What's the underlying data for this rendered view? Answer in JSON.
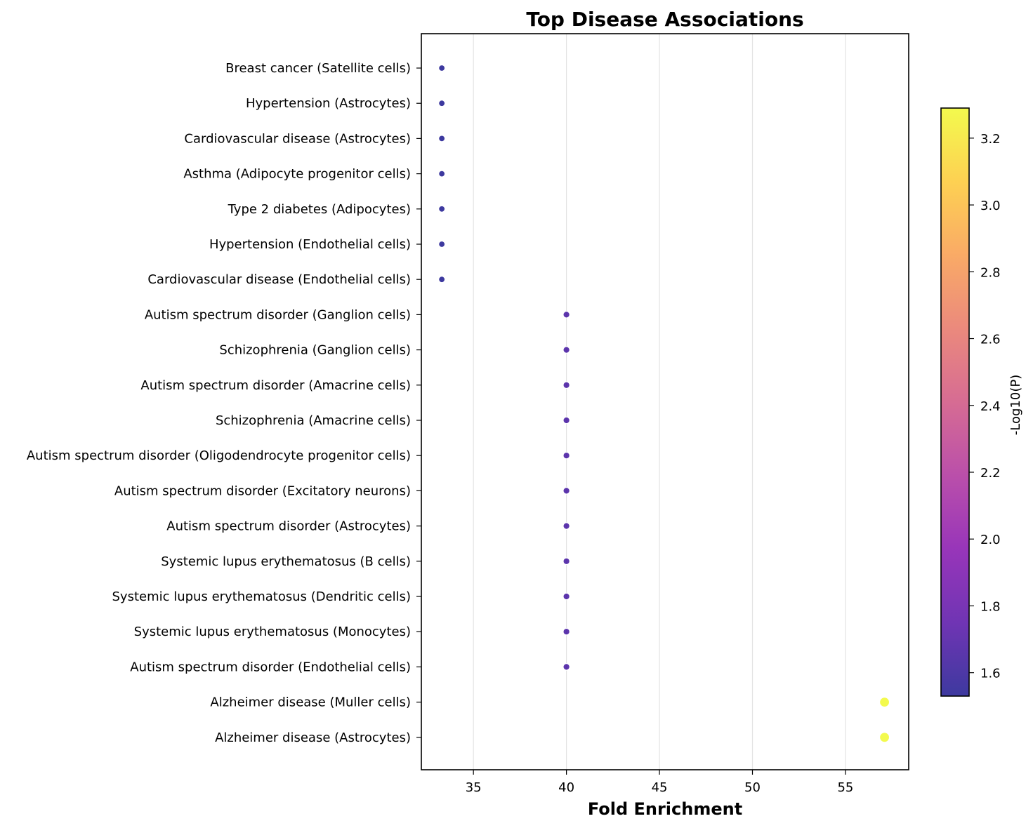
{
  "chart_data": {
    "type": "scatter",
    "title": "Top Disease Associations",
    "xlabel": "Fold Enrichment",
    "ylabel": "",
    "xlim": [
      32.2,
      58.4
    ],
    "xticks": [
      35,
      40,
      45,
      50,
      55
    ],
    "grid": "vertical",
    "colorbar": {
      "label": "-Log10(P)",
      "colormap": "plasma",
      "range": [
        1.53,
        3.29
      ],
      "ticks": [
        "1.6",
        "1.8",
        "2.0",
        "2.2",
        "2.4",
        "2.6",
        "2.8",
        "3.0",
        "3.2"
      ]
    },
    "points": [
      {
        "label": "Breast cancer (Satellite cells)",
        "x": 33.3,
        "neglog10p": 1.53
      },
      {
        "label": "Hypertension (Astrocytes)",
        "x": 33.3,
        "neglog10p": 1.53
      },
      {
        "label": "Cardiovascular disease (Astrocytes)",
        "x": 33.3,
        "neglog10p": 1.53
      },
      {
        "label": "Asthma (Adipocyte progenitor cells)",
        "x": 33.3,
        "neglog10p": 1.53
      },
      {
        "label": "Type 2 diabetes (Adipocytes)",
        "x": 33.3,
        "neglog10p": 1.53
      },
      {
        "label": "Hypertension (Endothelial cells)",
        "x": 33.3,
        "neglog10p": 1.53
      },
      {
        "label": "Cardiovascular disease (Endothelial cells)",
        "x": 33.3,
        "neglog10p": 1.53
      },
      {
        "label": "Autism spectrum disorder (Ganglion cells)",
        "x": 40.0,
        "neglog10p": 1.67
      },
      {
        "label": "Schizophrenia (Ganglion cells)",
        "x": 40.0,
        "neglog10p": 1.67
      },
      {
        "label": "Autism spectrum disorder (Amacrine cells)",
        "x": 40.0,
        "neglog10p": 1.67
      },
      {
        "label": "Schizophrenia (Amacrine cells)",
        "x": 40.0,
        "neglog10p": 1.67
      },
      {
        "label": "Autism spectrum disorder (Oligodendrocyte progenitor cells)",
        "x": 40.0,
        "neglog10p": 1.67
      },
      {
        "label": "Autism spectrum disorder (Excitatory neurons)",
        "x": 40.0,
        "neglog10p": 1.67
      },
      {
        "label": "Autism spectrum disorder (Astrocytes)",
        "x": 40.0,
        "neglog10p": 1.67
      },
      {
        "label": "Systemic lupus erythematosus (B cells)",
        "x": 40.0,
        "neglog10p": 1.67
      },
      {
        "label": "Systemic lupus erythematosus (Dendritic cells)",
        "x": 40.0,
        "neglog10p": 1.67
      },
      {
        "label": "Systemic lupus erythematosus (Monocytes)",
        "x": 40.0,
        "neglog10p": 1.67
      },
      {
        "label": "Autism spectrum disorder (Endothelial cells)",
        "x": 40.0,
        "neglog10p": 1.67
      },
      {
        "label": "Alzheimer disease (Muller cells)",
        "x": 57.1,
        "neglog10p": 3.29
      },
      {
        "label": "Alzheimer disease (Astrocytes)",
        "x": 57.1,
        "neglog10p": 3.29
      }
    ]
  }
}
